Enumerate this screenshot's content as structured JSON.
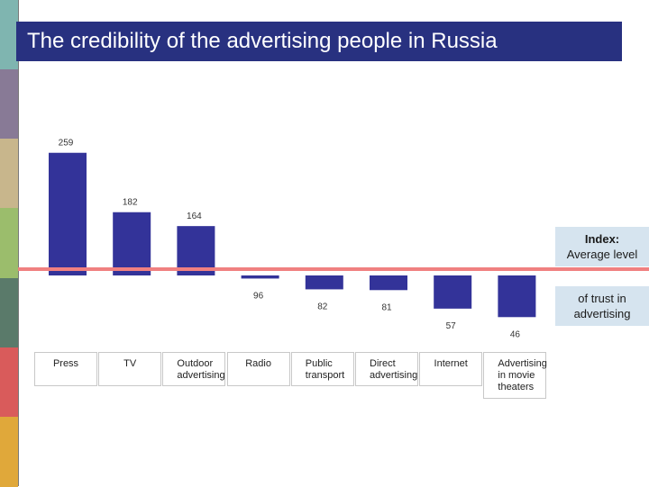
{
  "slide": {
    "title": "The credibility of the advertising people in Russia",
    "strip_colors": [
      "#7fb5b0",
      "#887a96",
      "#c8b68c",
      "#9bbd6c",
      "#5a7a6a",
      "#d95b5b",
      "#e0a83a"
    ]
  },
  "note": {
    "title": "Index:",
    "line2": "Average level",
    "line3": "of trust in",
    "line4": "advertising"
  },
  "chart_data": {
    "type": "bar",
    "categories": [
      "Press",
      "TV",
      "Outdoor advertising",
      "Radio",
      "Public transport",
      "Direct advertising",
      "Internet",
      "Advertising in movie theaters"
    ],
    "category_lines": [
      [
        "Press"
      ],
      [
        "TV"
      ],
      [
        "Outdoor",
        "advertising"
      ],
      [
        "Radio"
      ],
      [
        "Public",
        "transport"
      ],
      [
        "Direct",
        "advertising"
      ],
      [
        "Internet"
      ],
      [
        "Advertising",
        "in movie",
        "theaters"
      ]
    ],
    "values": [
      259,
      182,
      164,
      96,
      82,
      81,
      57,
      46
    ],
    "baseline": 100,
    "reference_line_label": "Average level of trust in advertising",
    "bar_color": "#333399",
    "reference_color": "#f08080",
    "title": ""
  }
}
